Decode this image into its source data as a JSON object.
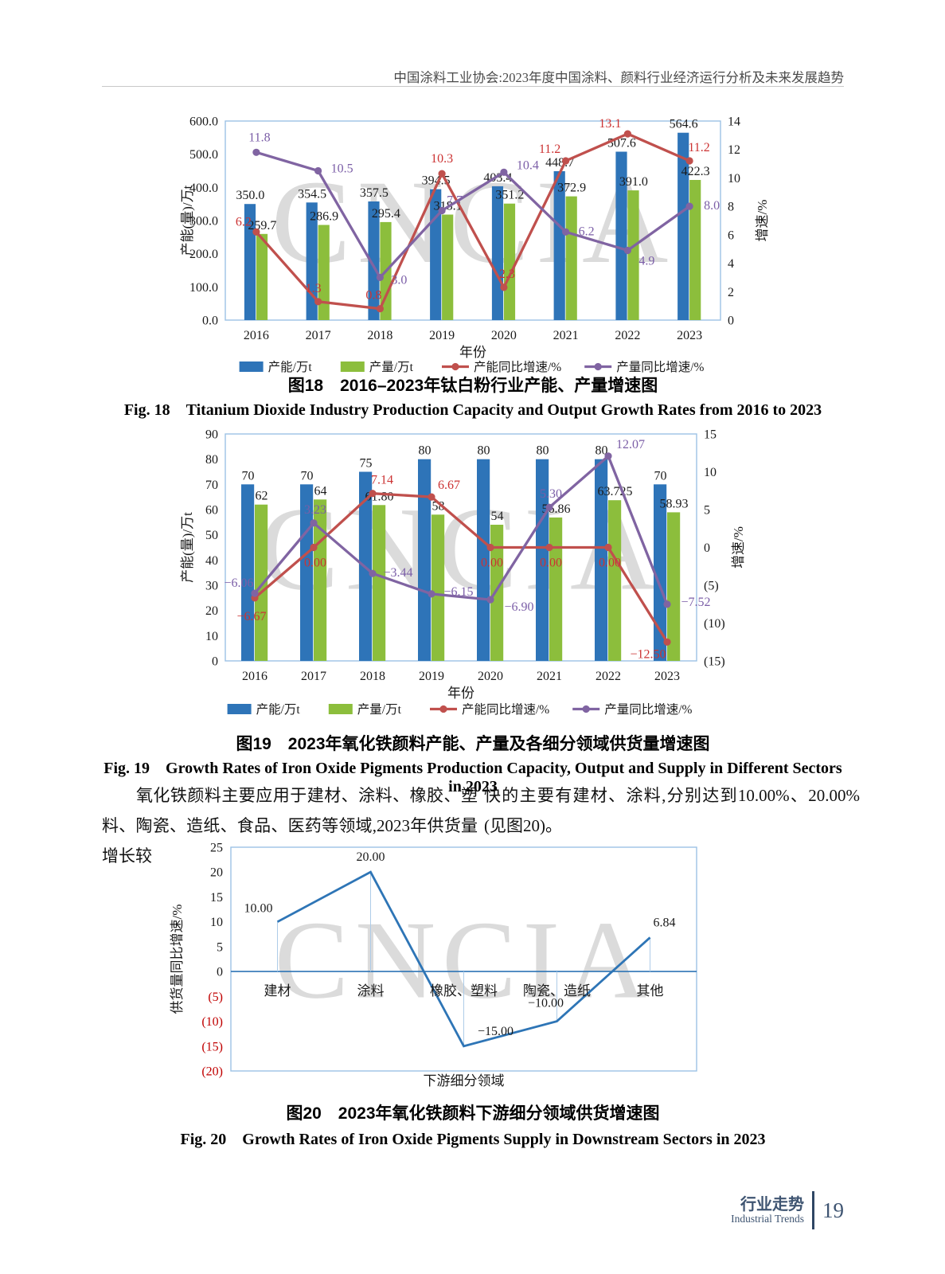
{
  "header": {
    "title": "中国涂料工业协会:2023年度中国涂料、颜料行业经济运行分析及未来发展趋势"
  },
  "watermark": "CNCIA",
  "chart_data": [
    {
      "id": "fig18",
      "type": "bar-line-combo",
      "title_zh": "图18　2016–2023年钛白粉行业产能、产量增速图",
      "title_en": "Fig. 18　Titanium Dioxide Industry Production Capacity and Output Growth Rates from 2016 to 2023",
      "categories": [
        "2016",
        "2017",
        "2018",
        "2019",
        "2020",
        "2021",
        "2022",
        "2023"
      ],
      "xlabel": "年份",
      "left_axis": {
        "label": "产能(量)/万t",
        "min": 0,
        "max": 600,
        "step": 100,
        "decimals": 1,
        "negative_style": "plain"
      },
      "right_axis": {
        "label": "增速/%",
        "min": 0,
        "max": 14,
        "step": 2,
        "decimals": 0,
        "negative_style": "plain"
      },
      "series": [
        {
          "name": "产能/万t",
          "kind": "bar",
          "axis": "left",
          "color": "#2E74B8",
          "values": [
            350.0,
            354.5,
            357.5,
            394.5,
            403.4,
            448.7,
            507.6,
            564.6
          ],
          "labels": [
            "350.0",
            "354.5",
            "357.5",
            "394.5",
            "403.4",
            "448.7",
            "507.6",
            "564.6"
          ]
        },
        {
          "name": "产量/万t",
          "kind": "bar",
          "axis": "left",
          "color": "#8CBE3C",
          "values": [
            259.7,
            286.9,
            295.4,
            318.1,
            351.2,
            372.9,
            391.0,
            422.3
          ],
          "labels": [
            "259.7",
            "286.9",
            "295.4",
            "318.1",
            "351.2",
            "372.9",
            "391.0",
            "422.3"
          ]
        },
        {
          "name": "产能同比增速/%",
          "kind": "line",
          "axis": "right",
          "color": "#C0504D",
          "label_color": "#CC3333",
          "values": [
            6.2,
            1.3,
            0.8,
            10.3,
            2.3,
            11.2,
            13.1,
            11.2
          ],
          "labels": [
            "6.2",
            "1.3",
            "0.8",
            "10.3",
            "2.3",
            "11.2",
            "13.1",
            "11.2"
          ]
        },
        {
          "name": "产量同比增速/%",
          "kind": "line",
          "axis": "right",
          "color": "#8064A2",
          "label_color": "#7B5EA7",
          "values": [
            11.8,
            10.5,
            3.0,
            7.7,
            10.4,
            6.2,
            4.9,
            8.0
          ],
          "labels": [
            "11.8",
            "10.5",
            "3.0",
            "7.7",
            "10.4",
            "6.2",
            "4.9",
            "8.0"
          ]
        }
      ]
    },
    {
      "id": "fig19",
      "type": "bar-line-combo",
      "title_zh": "图19　2023年氧化铁颜料产能、产量及各细分领域供货量增速图",
      "title_en": "Fig. 19　Growth Rates of Iron Oxide Pigments Production Capacity, Output and Supply in Different Sectors in 2023",
      "categories": [
        "2016",
        "2017",
        "2018",
        "2019",
        "2020",
        "2021",
        "2022",
        "2023"
      ],
      "xlabel": "年份",
      "left_axis": {
        "label": "产能(量)/万t",
        "min": 0,
        "max": 90,
        "step": 10,
        "decimals": 0,
        "negative_style": "plain"
      },
      "right_axis": {
        "label": "增速/%",
        "min": -15,
        "max": 15,
        "step": 5,
        "decimals": 0,
        "negative_style": "parentheses"
      },
      "series": [
        {
          "name": "产能/万t",
          "kind": "bar",
          "axis": "left",
          "color": "#2E74B8",
          "values": [
            70,
            70,
            75,
            80,
            80,
            80,
            80,
            70
          ],
          "labels": [
            "70",
            "70",
            "75",
            "80",
            "80",
            "80",
            "80",
            "70"
          ]
        },
        {
          "name": "产量/万t",
          "kind": "bar",
          "axis": "left",
          "color": "#8CBE3C",
          "values": [
            62,
            64,
            61.8,
            58,
            54,
            56.86,
            63.725,
            58.93
          ],
          "labels": [
            "62",
            "64",
            "61.80",
            "58",
            "54",
            "56.86",
            "63.725",
            "58.93"
          ]
        },
        {
          "name": "产能同比增速/%",
          "kind": "line",
          "axis": "right",
          "color": "#C0504D",
          "label_color": "#CC3333",
          "values": [
            -6.67,
            0.0,
            7.14,
            6.67,
            0.0,
            0.0,
            0.0,
            -12.5
          ],
          "labels": [
            "−6.67",
            "0.00",
            "7.14",
            "6.67",
            "0.00",
            "0.00",
            "0.00",
            "−12.50"
          ]
        },
        {
          "name": "产量同比增速/%",
          "kind": "line",
          "axis": "right",
          "color": "#8064A2",
          "label_color": "#7B5EA7",
          "values": [
            -6.06,
            3.23,
            -3.44,
            -6.15,
            -6.9,
            5.3,
            12.07,
            -7.52
          ],
          "labels": [
            "−6.06",
            "3.23",
            "−3.44",
            "−6.15",
            "−6.90",
            "5.30",
            "12.07",
            "−7.52"
          ]
        }
      ]
    },
    {
      "id": "fig20",
      "type": "line",
      "title_zh": "图20　2023年氧化铁颜料下游细分领域供货增速图",
      "title_en": "Fig. 20　Growth Rates of Iron Oxide Pigments Supply in Downstream Sectors in 2023",
      "categories": [
        "建材",
        "涂料",
        "橡胶、塑料",
        "陶瓷、造纸",
        "其他"
      ],
      "xlabel": "下游细分领域",
      "yaxis": {
        "label": "供货量同比增速/%",
        "min": -20,
        "max": 25,
        "step": 5,
        "negative_style": "parentheses-red"
      },
      "series": [
        {
          "name": "供货量同比增速/%",
          "kind": "line",
          "color": "#2E75B6",
          "values": [
            10.0,
            20.0,
            -15.0,
            -10.0,
            6.84
          ],
          "labels": [
            "10.00",
            "20.00",
            "−15.00",
            "−10.00",
            "6.84"
          ]
        }
      ]
    }
  ],
  "body": {
    "col1": "　　氧化铁颜料主要应用于建材、涂料、橡胶、塑料、陶瓷、造纸、食品、医药等领域,2023年供货量增长较",
    "col2": "快的主要有建材、涂料,分别达到10.00%、20.00%(见图20)。"
  },
  "footer": {
    "section_zh": "行业走势",
    "section_en": "Industrial Trends",
    "page_number": "19"
  }
}
